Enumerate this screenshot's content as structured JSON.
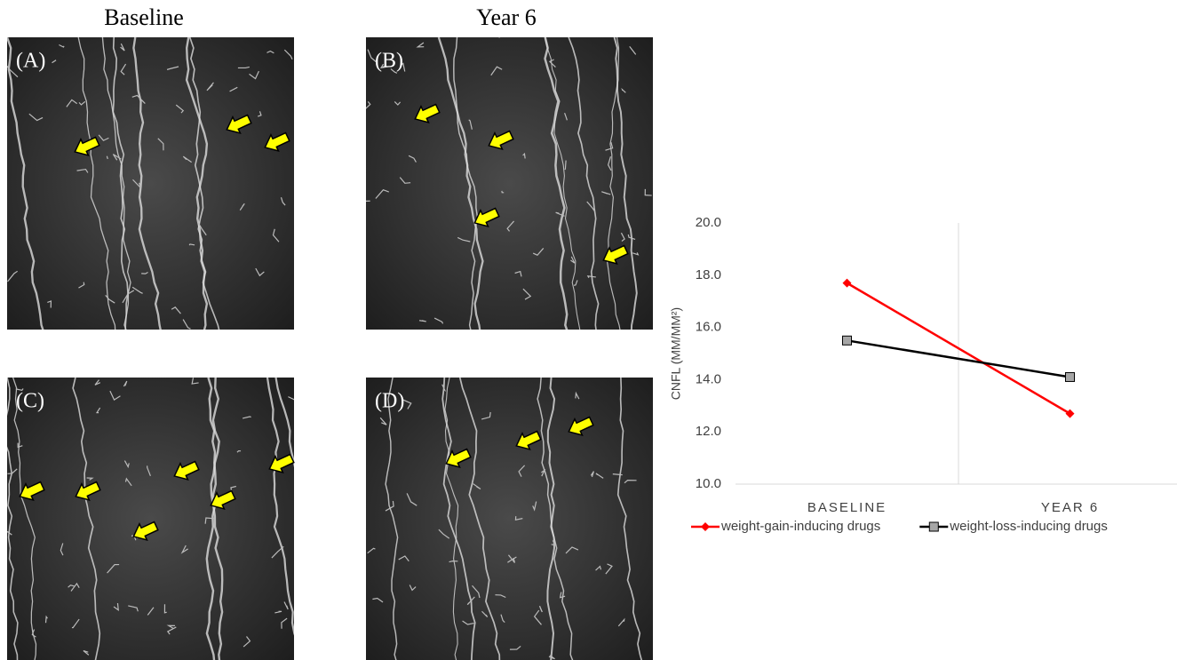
{
  "column_titles": [
    "Baseline",
    "Year 6"
  ],
  "panels": [
    "(A)",
    "(B)",
    "(C)",
    "(D)"
  ],
  "chart_data": {
    "type": "line",
    "ylabel": "CNFL (MM/MM²)",
    "categories": [
      "BASELINE",
      "YEAR 6"
    ],
    "series": [
      {
        "name": "weight-gain-inducing drugs",
        "color": "#ff0000",
        "marker": "diamond",
        "values": [
          17.7,
          12.7
        ]
      },
      {
        "name": "weight-loss-inducing drugs",
        "color": "#000000",
        "marker": "square",
        "values": [
          15.5,
          14.1
        ]
      }
    ],
    "ylim": [
      10,
      20
    ],
    "yticks": [
      {
        "value": 10,
        "label": "10.0"
      },
      {
        "value": 12,
        "label": "12.0"
      },
      {
        "value": 14,
        "label": "14.0"
      },
      {
        "value": 16,
        "label": "16.0"
      },
      {
        "value": 18,
        "label": "18.0"
      },
      {
        "value": 20,
        "label": "20.0"
      }
    ],
    "legend": "bottom"
  }
}
